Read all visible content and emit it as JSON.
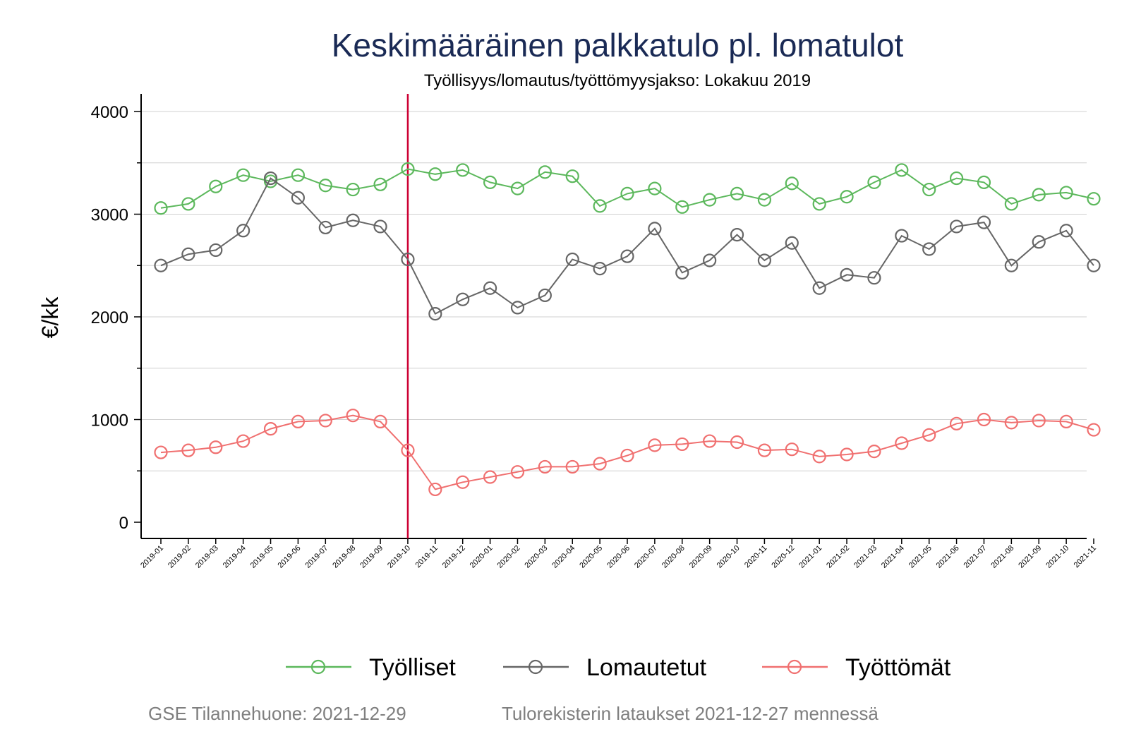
{
  "chart_data": {
    "type": "line",
    "title": "Keskimääräinen palkkatulo pl. lomatulot",
    "subtitle": "Työllisyys/lomautus/työttömyysjakso: Lokakuu 2019",
    "xlabel": "",
    "ylabel": "€/kk",
    "ylim": [
      -150,
      4150
    ],
    "yticks": [
      0,
      1000,
      2000,
      3000,
      4000
    ],
    "grid": true,
    "legend_position": "bottom",
    "reference_line": {
      "x": "2019-10",
      "color": "#cc0033"
    },
    "x": [
      "2019-01",
      "2019-02",
      "2019-03",
      "2019-04",
      "2019-05",
      "2019-06",
      "2019-07",
      "2019-08",
      "2019-09",
      "2019-10",
      "2019-11",
      "2019-12",
      "2020-01",
      "2020-02",
      "2020-03",
      "2020-04",
      "2020-05",
      "2020-06",
      "2020-07",
      "2020-08",
      "2020-09",
      "2020-10",
      "2020-11",
      "2020-12",
      "2021-01",
      "2021-02",
      "2021-03",
      "2021-04",
      "2021-05",
      "2021-06",
      "2021-07",
      "2021-08",
      "2021-09",
      "2021-10",
      "2021-11"
    ],
    "series": [
      {
        "name": "Työlliset",
        "color": "#5cb85c",
        "values": [
          3060,
          3100,
          3270,
          3380,
          3320,
          3380,
          3280,
          3240,
          3290,
          3440,
          3390,
          3430,
          3310,
          3250,
          3410,
          3370,
          3080,
          3200,
          3250,
          3070,
          3140,
          3200,
          3140,
          3300,
          3100,
          3170,
          3310,
          3430,
          3240,
          3350,
          3310,
          3100,
          3190,
          3210,
          3150
        ]
      },
      {
        "name": "Lomautetut",
        "color": "#666666",
        "values": [
          2500,
          2610,
          2650,
          2840,
          3350,
          3160,
          2870,
          2940,
          2880,
          2560,
          2030,
          2170,
          2280,
          2090,
          2210,
          2560,
          2470,
          2590,
          2860,
          2430,
          2550,
          2800,
          2550,
          2720,
          2280,
          2410,
          2380,
          2790,
          2660,
          2880,
          2920,
          2500,
          2730,
          2840,
          2500
        ]
      },
      {
        "name": "Työttömät",
        "color": "#f07070",
        "values": [
          680,
          700,
          730,
          790,
          910,
          980,
          990,
          1040,
          980,
          700,
          320,
          390,
          440,
          490,
          540,
          540,
          570,
          650,
          750,
          760,
          790,
          780,
          700,
          710,
          640,
          660,
          690,
          770,
          850,
          960,
          1000,
          970,
          990,
          980,
          900
        ]
      }
    ]
  },
  "footer": {
    "source": "GSE Tilannehuone: 2021-12-29",
    "note": "Tulorekisterin lataukset 2021-12-27 mennessä"
  }
}
